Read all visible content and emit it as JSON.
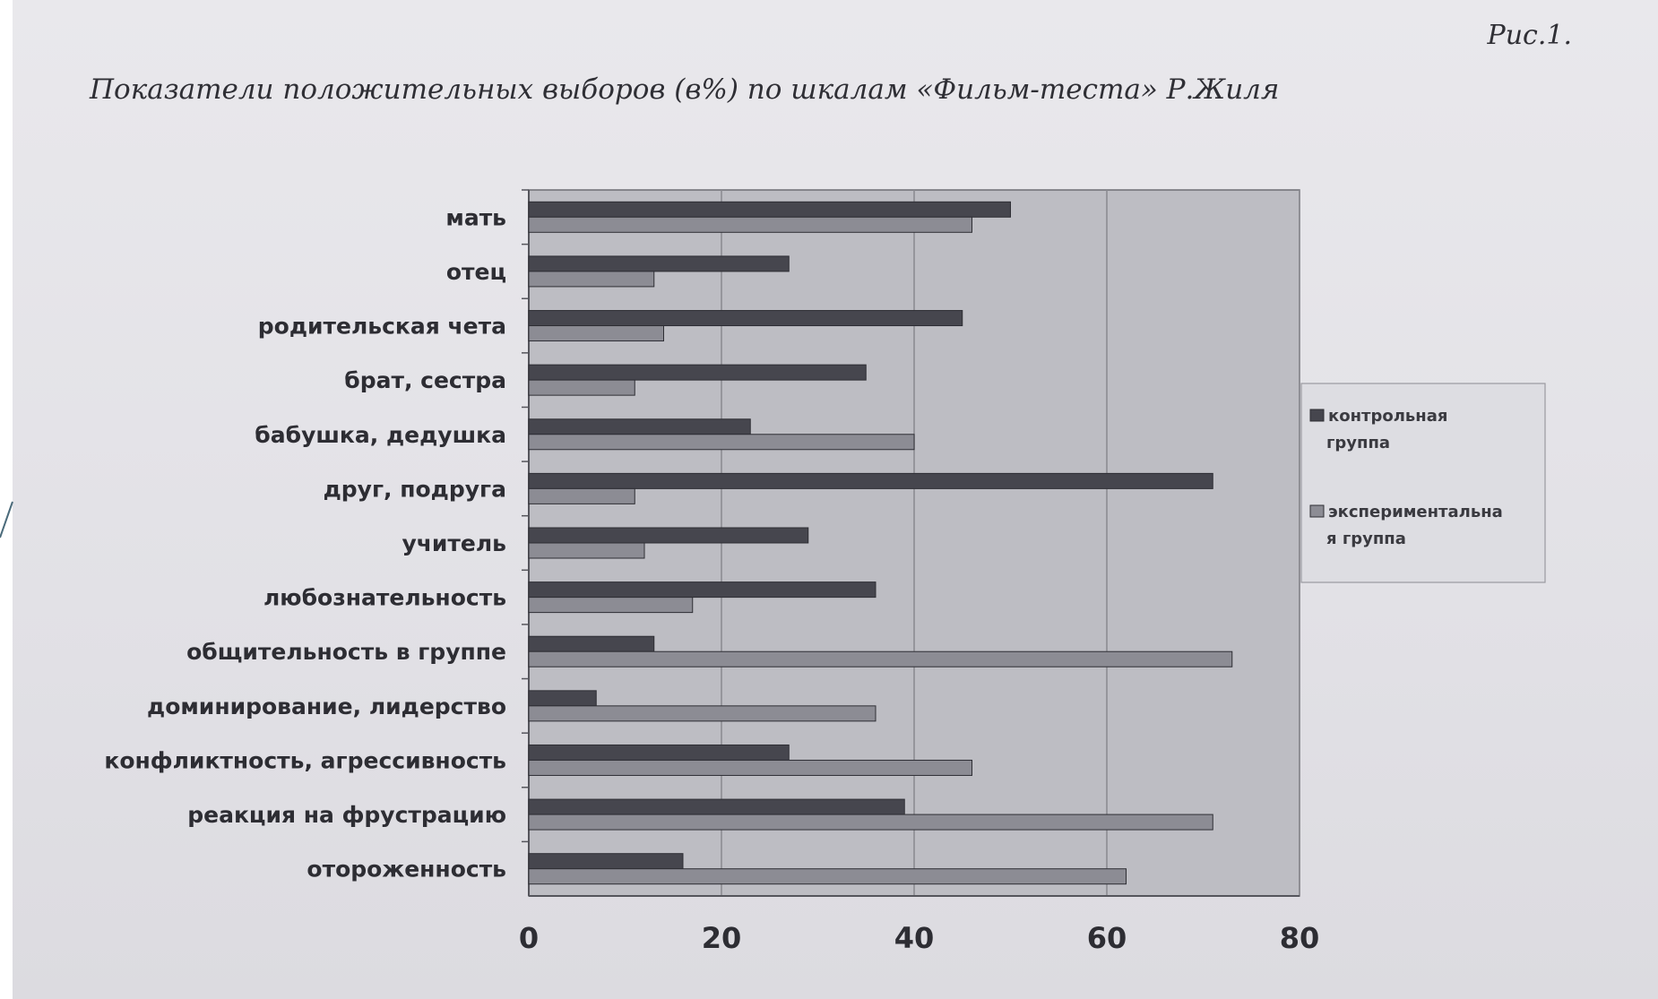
{
  "figure": {
    "number": "Рис.1.",
    "title": "Показатели положительных выборов (в%) по шкалам «Фильм-теста» Р.Жиля"
  },
  "colors": {
    "series_control": "#46464e",
    "series_experimental": "#8c8c94",
    "plot_background": "#bdbdc3",
    "gridline": "#8a8a90"
  },
  "chart_data": {
    "type": "bar",
    "orientation": "horizontal",
    "categories": [
      "мать",
      "отец",
      "родительская чета",
      "брат, сестра",
      "бабушка, дедушка",
      "друг, подруга",
      "учитель",
      "любознательность",
      "общительность в группе",
      "доминирование, лидерство",
      "конфликтность, агрессивность",
      "реакция на фрустрацию",
      "отороженность"
    ],
    "series": [
      {
        "name": "контрольная группа",
        "values": [
          50,
          27,
          45,
          35,
          23,
          71,
          29,
          36,
          13,
          7,
          27,
          39,
          16
        ]
      },
      {
        "name": "экспериментальная группа",
        "values": [
          46,
          13,
          14,
          11,
          40,
          11,
          12,
          17,
          73,
          36,
          46,
          71,
          62
        ]
      }
    ],
    "xlim": [
      0,
      80
    ],
    "xticks": [
      0,
      20,
      40,
      60,
      80
    ],
    "grid": true,
    "legend_position": "right",
    "legend_labels": [
      [
        "контрольная",
        "группа"
      ],
      [
        "экспериментальна",
        "я группа"
      ]
    ]
  }
}
